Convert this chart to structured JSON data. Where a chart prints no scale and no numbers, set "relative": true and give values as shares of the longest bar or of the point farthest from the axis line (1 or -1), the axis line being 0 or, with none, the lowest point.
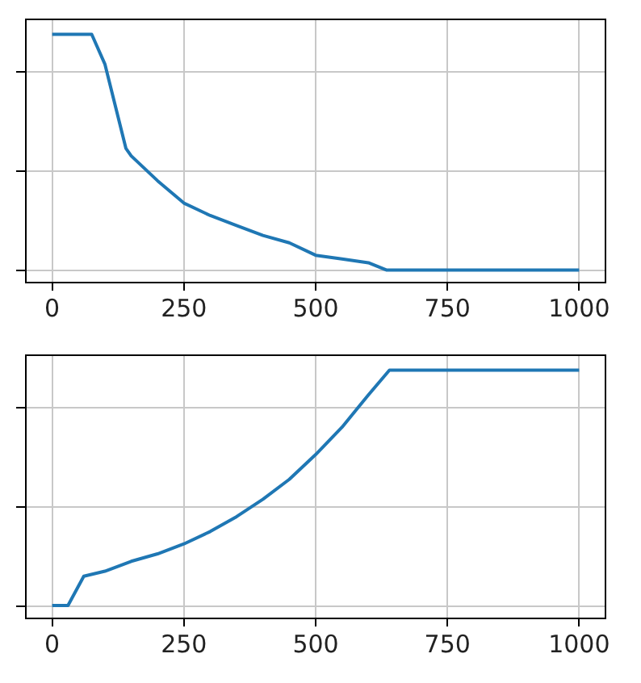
{
  "chart_data": [
    {
      "type": "line",
      "relative": true,
      "x": [
        0,
        75,
        100,
        140,
        150,
        200,
        250,
        300,
        350,
        400,
        450,
        500,
        550,
        600,
        635,
        1000
      ],
      "series": [
        {
          "color": "#1f77b4",
          "values": [
            1.0,
            1.0,
            0.88,
            0.54,
            0.51,
            0.41,
            0.32,
            0.27,
            0.23,
            0.19,
            0.16,
            0.11,
            0.095,
            0.08,
            0.05,
            0.05
          ]
        }
      ],
      "xlim": [
        -50,
        1050
      ],
      "xticks": [
        0,
        250,
        500,
        750,
        1000
      ],
      "grid": true,
      "tick_labels": "x",
      "marker": "none",
      "line_style": "solid"
    },
    {
      "type": "line",
      "relative": true,
      "x": [
        0,
        30,
        60,
        100,
        150,
        200,
        250,
        300,
        350,
        400,
        450,
        500,
        550,
        600,
        640,
        1000
      ],
      "series": [
        {
          "color": "#1f77b4",
          "values": [
            0.052,
            0.052,
            0.17,
            0.19,
            0.23,
            0.26,
            0.3,
            0.35,
            0.41,
            0.48,
            0.56,
            0.66,
            0.77,
            0.9,
            1.0,
            1.0
          ]
        }
      ],
      "xlim": [
        -50,
        1050
      ],
      "xticks": [
        0,
        250,
        500,
        750,
        1000
      ],
      "grid": true,
      "tick_labels": "x",
      "marker": "none",
      "line_style": "solid"
    }
  ]
}
